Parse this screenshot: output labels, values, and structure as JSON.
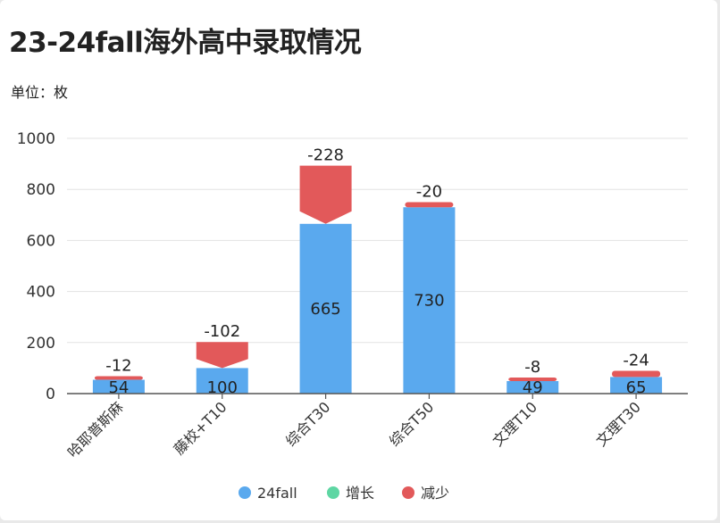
{
  "title": "23-24fall海外高中录取情况",
  "unit": "单位：枚",
  "colors": {
    "blue": "#5aa9ee",
    "green": "#5ed6a3",
    "red": "#e2595a",
    "grid": "#e3e3e3",
    "axis": "#555555"
  },
  "chart_data": {
    "type": "bar",
    "title": "23-24fall海外高中录取情况",
    "ylabel": "单位：枚",
    "ylim": [
      0,
      1000
    ],
    "yticks": [
      0,
      200,
      400,
      600,
      800,
      1000
    ],
    "categories": [
      "哈耶普斯麻",
      "藤校+T10",
      "综合T30",
      "综合T50",
      "文理T10",
      "文理T30"
    ],
    "series": [
      {
        "name": "24fall",
        "values": [
          54,
          100,
          665,
          730,
          49,
          65
        ]
      },
      {
        "name": "增长",
        "values": [
          0,
          0,
          0,
          0,
          0,
          0
        ]
      },
      {
        "name": "减少",
        "values": [
          12,
          102,
          228,
          20,
          8,
          24
        ]
      }
    ],
    "value_labels": [
      "54",
      "100",
      "665",
      "730",
      "49",
      "65"
    ],
    "change_labels": [
      "-12",
      "-102",
      "-228",
      "-20",
      "-8",
      "-24"
    ],
    "legend": [
      "24fall",
      "增长",
      "减少"
    ],
    "legend_position": "bottom"
  }
}
